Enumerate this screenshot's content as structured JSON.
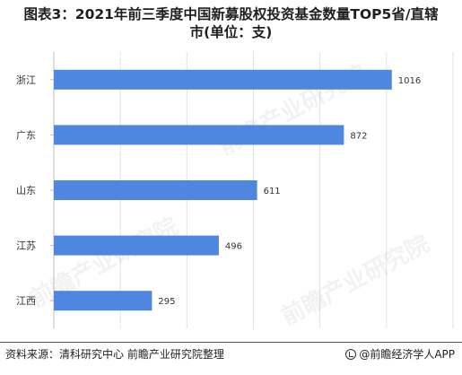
{
  "title": {
    "line1": "图表3：2021年前三季度中国新募股权投资基金数量TOP5省/直辖",
    "line2": "市(单位：支)"
  },
  "chart_data": {
    "type": "bar",
    "orientation": "horizontal",
    "categories": [
      "浙江",
      "广东",
      "山东",
      "江苏",
      "江西"
    ],
    "values": [
      1016,
      872,
      611,
      496,
      295
    ],
    "xlim": [
      0,
      1200
    ],
    "bar_color": "#4f86e0",
    "grid": "vertical"
  },
  "footer": {
    "source": "资料来源：清科研究中心 前瞻产业研究院整理",
    "brand": "@前瞻经济学人APP"
  },
  "watermark": "前瞻产业研究院"
}
